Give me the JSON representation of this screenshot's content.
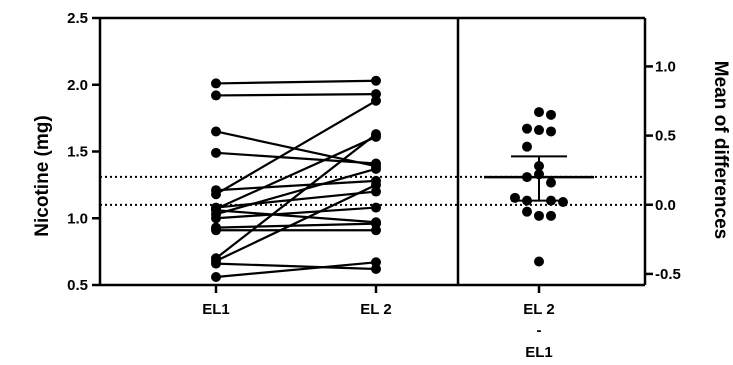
{
  "chart_data": {
    "type": "scatter",
    "style": "estimation-plot",
    "paired": {
      "categories": [
        "EL1",
        "EL 2"
      ],
      "ylabel": "Nicotine (mg)",
      "ylim": [
        0.5,
        2.5
      ],
      "yticks": [
        "0.5",
        "1.0",
        "1.5",
        "2.0",
        "2.5"
      ],
      "pairs": [
        [
          2.01,
          2.03
        ],
        [
          1.92,
          1.93
        ],
        [
          1.65,
          1.39
        ],
        [
          1.49,
          1.41
        ],
        [
          1.21,
          1.28
        ],
        [
          1.18,
          1.88
        ],
        [
          1.08,
          1.2
        ],
        [
          1.07,
          1.61
        ],
        [
          1.06,
          0.97
        ],
        [
          1.03,
          1.37
        ],
        [
          1.0,
          1.08
        ],
        [
          0.93,
          0.96
        ],
        [
          0.91,
          0.91
        ],
        [
          0.7,
          1.63
        ],
        [
          0.68,
          1.25
        ],
        [
          0.66,
          0.62
        ],
        [
          0.56,
          0.67
        ]
      ],
      "reference_lines": [
        1.31,
        1.1
      ]
    },
    "differences": {
      "category_label_lines": [
        "EL 2",
        "-",
        "EL1"
      ],
      "ylabel": "Mean of differences",
      "ylim": [
        -0.58,
        1.35
      ],
      "yticks": [
        "-0.5",
        "0.0",
        "0.5",
        "1.0"
      ],
      "points": [
        {
          "x": 0,
          "y": 0.67
        },
        {
          "x": 1,
          "y": 0.65
        },
        {
          "x": -1,
          "y": 0.55
        },
        {
          "x": 1,
          "y": 0.53
        },
        {
          "x": -1,
          "y": 0.42
        },
        {
          "x": 0,
          "y": 0.54
        },
        {
          "x": 0,
          "y": 0.28
        },
        {
          "x": 0,
          "y": 0.22
        },
        {
          "x": -1,
          "y": 0.2
        },
        {
          "x": 1,
          "y": 0.16
        },
        {
          "x": -2,
          "y": 0.05
        },
        {
          "x": -1,
          "y": 0.03
        },
        {
          "x": 1,
          "y": 0.03
        },
        {
          "x": 2,
          "y": 0.02
        },
        {
          "x": -1,
          "y": -0.05
        },
        {
          "x": 0,
          "y": -0.08
        },
        {
          "x": 1,
          "y": -0.08
        },
        {
          "x": 0,
          "y": -0.41
        }
      ],
      "mean": 0.2,
      "ci": [
        0.03,
        0.35
      ]
    }
  }
}
